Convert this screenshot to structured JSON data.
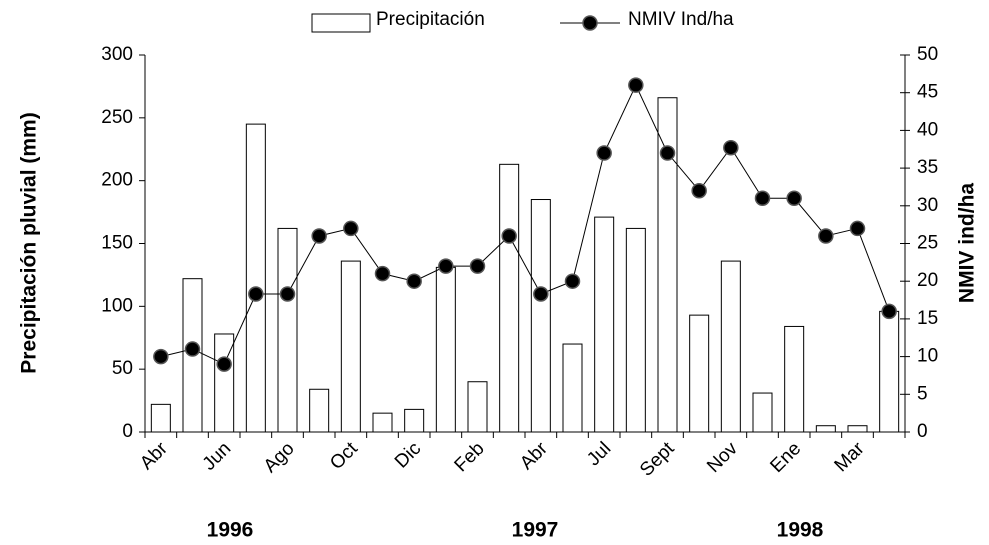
{
  "chart_data": {
    "type": "bar",
    "categories": [
      "Abr",
      null,
      "Jun",
      null,
      "Ago",
      null,
      "Oct",
      null,
      "Dic",
      null,
      "Feb",
      null,
      "Abr",
      null,
      "Jul",
      null,
      "Sept",
      null,
      "Nov",
      null,
      "Ene",
      null,
      "Mar",
      null
    ],
    "series": [
      {
        "name": "Precipitación",
        "type": "bar",
        "color": "#ffffff",
        "values": [
          22,
          122,
          78,
          245,
          162,
          34,
          136,
          15,
          18,
          131,
          40,
          213,
          185,
          70,
          171,
          162,
          266,
          93,
          136,
          31,
          84,
          5,
          5,
          96
        ]
      },
      {
        "name": "NMIV Ind/ha",
        "type": "line",
        "axis": "y2",
        "color": "#000000",
        "values": [
          10,
          11,
          9,
          18.3,
          18.3,
          26,
          27,
          21,
          20,
          22,
          22,
          26,
          18.3,
          20,
          37,
          46,
          37,
          32,
          37.7,
          31,
          31,
          26,
          27,
          16
        ]
      }
    ],
    "y_label": "Precipitación pluvial (mm)",
    "y2_label": "NMIV ind/ha",
    "ylim": [
      0,
      300
    ],
    "yticks": [
      0,
      50,
      100,
      150,
      200,
      250,
      300
    ],
    "y2lim": [
      0,
      50
    ],
    "y2ticks": [
      0,
      5,
      10,
      15,
      20,
      25,
      30,
      35,
      40,
      45,
      50
    ],
    "annotations": [
      "1996",
      "1997",
      "1998"
    ],
    "legend": "top"
  }
}
